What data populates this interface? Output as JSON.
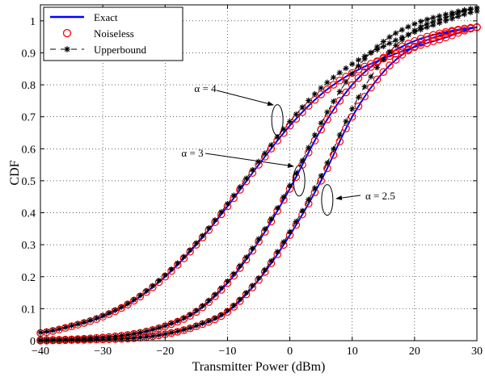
{
  "chart_data": {
    "type": "line",
    "xlabel": "Transmitter Power (dBm)",
    "ylabel": "CDF",
    "xlim": [
      -40,
      30
    ],
    "ylim": [
      0,
      1.05
    ],
    "xticks": [
      -40,
      -30,
      -20,
      -10,
      0,
      10,
      20,
      30
    ],
    "yticks": [
      0,
      0.1,
      0.2,
      0.3,
      0.4,
      0.5,
      0.6,
      0.7,
      0.8,
      0.9,
      1
    ],
    "xtick_labels": [
      "−40",
      "−30",
      "−20",
      "−10",
      "0",
      "10",
      "20",
      "30"
    ],
    "ytick_labels": [
      "0",
      "0.1",
      "0.2",
      "0.3",
      "0.4",
      "0.5",
      "0.6",
      "0.7",
      "0.8",
      "0.9",
      "1"
    ],
    "grid": true,
    "grid_style": "dotted",
    "legend_position": "top-left",
    "legend": [
      {
        "label": "Exact",
        "style": "solid-line",
        "color": "#0000ff"
      },
      {
        "label": "Noiseless",
        "style": "circle-marker",
        "color": "#ff0000"
      },
      {
        "label": "Upperbound",
        "style": "dashed-asterisk",
        "color": "#000000"
      }
    ],
    "x": [
      -40,
      -35,
      -30,
      -25,
      -20,
      -15,
      -10,
      -5,
      0,
      5,
      10,
      15,
      20,
      25,
      30
    ],
    "series": [
      {
        "name": "Exact",
        "group": "α = 4",
        "values": [
          0.024,
          0.045,
          0.075,
          0.125,
          0.2,
          0.3,
          0.42,
          0.55,
          0.672,
          0.77,
          0.837,
          0.882,
          0.918,
          0.948,
          0.98
        ]
      },
      {
        "name": "Exact",
        "group": "α = 3",
        "values": [
          0.002,
          0.004,
          0.01,
          0.021,
          0.045,
          0.09,
          0.18,
          0.31,
          0.475,
          0.66,
          0.8,
          0.885,
          0.937,
          0.965,
          0.98
        ]
      },
      {
        "name": "Exact",
        "group": "α = 2.5",
        "values": [
          0.0,
          0.002,
          0.004,
          0.008,
          0.02,
          0.045,
          0.09,
          0.19,
          0.33,
          0.5,
          0.7,
          0.84,
          0.92,
          0.96,
          0.98
        ]
      },
      {
        "name": "Noiseless",
        "group": "α = 4",
        "values": [
          0.024,
          0.045,
          0.075,
          0.125,
          0.2,
          0.3,
          0.42,
          0.55,
          0.672,
          0.77,
          0.837,
          0.882,
          0.918,
          0.948,
          0.98
        ]
      },
      {
        "name": "Noiseless",
        "group": "α = 3",
        "values": [
          0.002,
          0.004,
          0.01,
          0.021,
          0.045,
          0.09,
          0.18,
          0.31,
          0.475,
          0.66,
          0.8,
          0.885,
          0.937,
          0.965,
          0.98
        ]
      },
      {
        "name": "Noiseless",
        "group": "α = 2.5",
        "values": [
          0.0,
          0.002,
          0.004,
          0.008,
          0.02,
          0.045,
          0.09,
          0.19,
          0.33,
          0.5,
          0.7,
          0.84,
          0.92,
          0.96,
          0.98
        ]
      },
      {
        "name": "Upperbound",
        "group": "α = 4",
        "values": [
          0.026,
          0.047,
          0.078,
          0.128,
          0.205,
          0.305,
          0.428,
          0.56,
          0.685,
          0.79,
          0.865,
          0.92,
          0.965,
          1.0,
          1.03
        ]
      },
      {
        "name": "Upperbound",
        "group": "α = 3",
        "values": [
          0.002,
          0.004,
          0.01,
          0.022,
          0.047,
          0.094,
          0.186,
          0.318,
          0.485,
          0.68,
          0.835,
          0.935,
          0.99,
          1.02,
          1.04
        ]
      },
      {
        "name": "Upperbound",
        "group": "α = 2.5",
        "values": [
          0.0,
          0.002,
          0.004,
          0.008,
          0.021,
          0.047,
          0.094,
          0.196,
          0.34,
          0.515,
          0.725,
          0.88,
          0.97,
          1.01,
          1.04
        ]
      }
    ],
    "annotations": [
      {
        "text": "α = 4",
        "x": -2,
        "y": 0.69
      },
      {
        "text": "α = 3",
        "x": 1.5,
        "y": 0.5
      },
      {
        "text": "α = 2.5",
        "x": 6,
        "y": 0.44
      }
    ]
  }
}
